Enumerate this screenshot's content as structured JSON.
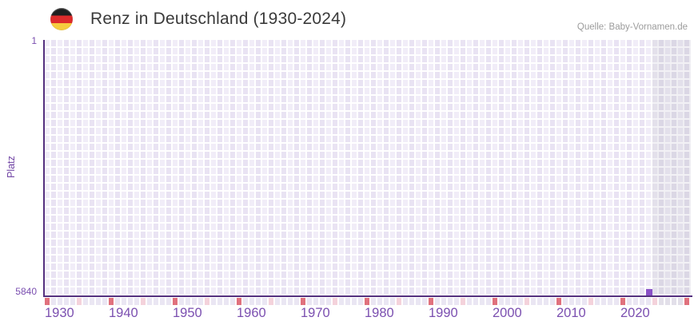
{
  "header": {
    "title": "Renz in Deutschland (1930-2024)",
    "source": "Quelle: Baby-Vornamen.de",
    "flag_icon": "german-flag"
  },
  "chart_data": {
    "type": "bar",
    "title": "Renz in Deutschland (1930-2024)",
    "ylabel": "Platz",
    "y_axis": {
      "top_tick": "1",
      "bottom_tick": "5840",
      "min": 1,
      "max": 5840,
      "inverted": true
    },
    "x_axis": {
      "grid_start_year": 1930,
      "grid_end_year": 2030,
      "tick_labels": [
        "1930",
        "1940",
        "1950",
        "1960",
        "1970",
        "1980",
        "1990",
        "2000",
        "2010",
        "2020"
      ]
    },
    "series": [
      {
        "name": "Platz",
        "points": [
          {
            "year": 2024,
            "value": 5840
          }
        ]
      }
    ],
    "future_zone": {
      "start_year": 2025,
      "end_year": 2030
    },
    "colors": {
      "bar": "#8a51c7",
      "axis": "#55307f",
      "decade_tick": "#e0717d",
      "half_decade_tick": "#f4d2db",
      "default_tick": "#eae6f3",
      "future_default_tick": "#e2dfe9",
      "label_purple": "#7b4fb0",
      "title_text": "#3a3a3a",
      "source_text": "#9c9c9c",
      "flag_black": "#1f1f1f",
      "flag_red": "#dd2b2b",
      "flag_gold": "#f6cd3e"
    },
    "legend": null,
    "grid": true
  }
}
